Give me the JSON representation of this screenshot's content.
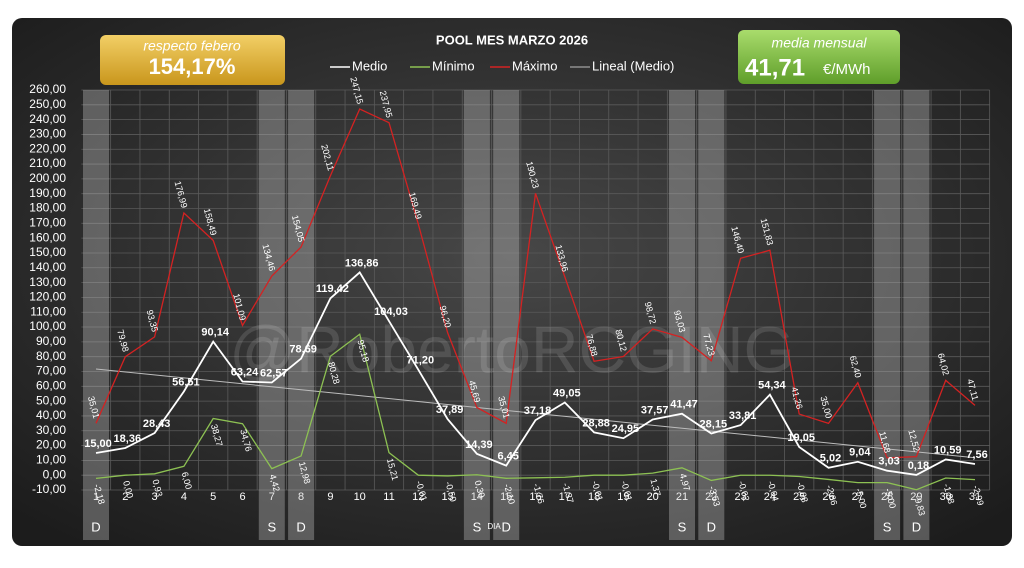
{
  "chart_data": {
    "type": "line",
    "title": "POOL  MES MARZO 2026",
    "x_label": "DIA",
    "watermark": "@RobertoRCGING",
    "kpi_left": {
      "label": "respecto febero",
      "value": "154,17%"
    },
    "kpi_right": {
      "label": "media mensual",
      "value": "41,71",
      "unit": "€/MWh"
    },
    "categories": [
      "1",
      "2",
      "3",
      "4",
      "5",
      "6",
      "7",
      "8",
      "9",
      "10",
      "11",
      "12",
      "13",
      "14",
      "15",
      "16",
      "17",
      "18",
      "19",
      "20",
      "21",
      "22",
      "23",
      "24",
      "25",
      "26",
      "27",
      "28",
      "29",
      "30",
      "31"
    ],
    "day_markers": [
      {
        "category": "1",
        "label": "D"
      },
      {
        "category": "7",
        "label": "S"
      },
      {
        "category": "8",
        "label": "D"
      },
      {
        "category": "14",
        "label": "S"
      },
      {
        "category": "15",
        "label": "D"
      },
      {
        "category": "21",
        "label": "S"
      },
      {
        "category": "22",
        "label": "D"
      },
      {
        "category": "28",
        "label": "S"
      },
      {
        "category": "29",
        "label": "D"
      }
    ],
    "series": [
      {
        "name": "Medio",
        "color": "#ffffff",
        "values": [
          15.0,
          18.36,
          28.43,
          56.51,
          90.14,
          63.24,
          62.57,
          78.69,
          119.42,
          136.86,
          104.03,
          71.2,
          37.89,
          14.39,
          6.45,
          37.18,
          49.05,
          28.88,
          24.95,
          37.57,
          41.47,
          28.15,
          33.81,
          54.34,
          19.05,
          5.02,
          9.04,
          3.03,
          0.18,
          10.59,
          7.56
        ],
        "value_labels": [
          "15,00",
          "18,36",
          "28,43",
          "56,51",
          "90,14",
          "63,24",
          "62,57",
          "78,69",
          "119,42",
          "136,86",
          "104,03",
          "71,20",
          "37,89",
          "14,39",
          "6,45",
          "37,18",
          "49,05",
          "28,88",
          "24,95",
          "37,57",
          "41,47",
          "28,15",
          "33,81",
          "54,34",
          "19,05",
          "5,02",
          "9,04",
          "3,03",
          "0,18",
          "10,59",
          "7,56"
        ]
      },
      {
        "name": "Mínimo",
        "color": "#8dc153",
        "values": [
          -2.18,
          0.0,
          0.93,
          6.0,
          38.27,
          34.76,
          4.42,
          12.98,
          80.28,
          95.18,
          15.21,
          -0.01,
          -0.5,
          0.3,
          -2.1,
          -1.76,
          -1.37,
          -0.01,
          -0.01,
          1.37,
          4.97,
          -3.53,
          -0.02,
          -0.04,
          -0.88,
          -2.86,
          -5.0,
          -5.0,
          -9.83,
          -1.88,
          -2.99
        ],
        "value_labels": [
          "-2,18",
          "0,00",
          "0,93",
          "6,00",
          "38,27",
          "34,76",
          "4,42",
          "12,98",
          "80,28",
          "95,18",
          "15,21",
          "-0,01",
          "-0,50",
          "0,30",
          "-2,10",
          "-1,76",
          "-1,37",
          "-0,01",
          "-0,01",
          "1,37",
          "4,97",
          "-3,53",
          "-0,02",
          "-0,04",
          "-0,88",
          "-2,86",
          "-5,00",
          "-5,00",
          "-9,83",
          "-1,88",
          "-2,99"
        ]
      },
      {
        "name": "Máximo",
        "color": "#d42222",
        "values": [
          35.01,
          79.98,
          93.35,
          176.99,
          158.49,
          101.09,
          134.46,
          154.05,
          202.11,
          247.15,
          237.95,
          169.49,
          96.2,
          45.69,
          35.01,
          190.23,
          133.96,
          76.88,
          80.12,
          98.72,
          93.03,
          77.23,
          146.4,
          151.83,
          41.26,
          35.0,
          62.4,
          11.68,
          12.52,
          64.02,
          47.11
        ],
        "value_labels": [
          "35,01",
          "79,98",
          "93,35",
          "176,99",
          "158,49",
          "101,09",
          "134,46",
          "154,05",
          "202,11",
          "247,15",
          "237,95",
          "169,49",
          "96,20",
          "45,69",
          "35,01",
          "190,23",
          "133,96",
          "76,88",
          "80,12",
          "98,72",
          "93,03",
          "77,23",
          "146,40",
          "151,83",
          "41,26",
          "35,00",
          "62,40",
          "11,68",
          "12,52",
          "64,02",
          "47,11"
        ]
      }
    ],
    "trend": {
      "name": "Lineal (Medio)",
      "color": "#bdbdbd"
    },
    "ylim": [
      -10,
      260
    ],
    "yticks": [
      {
        "value": -10,
        "label": "-10,00"
      },
      {
        "value": 0,
        "label": "0,00"
      },
      {
        "value": 10,
        "label": "10,00"
      },
      {
        "value": 20,
        "label": "20,00"
      },
      {
        "value": 30,
        "label": "30,00"
      },
      {
        "value": 40,
        "label": "40,00"
      },
      {
        "value": 50,
        "label": "50,00"
      },
      {
        "value": 60,
        "label": "60,00"
      },
      {
        "value": 70,
        "label": "70,00"
      },
      {
        "value": 80,
        "label": "80,00"
      },
      {
        "value": 90,
        "label": "90,00"
      },
      {
        "value": 100,
        "label": "100,00"
      },
      {
        "value": 110,
        "label": "110,00"
      },
      {
        "value": 120,
        "label": "120,00"
      },
      {
        "value": 130,
        "label": "130,00"
      },
      {
        "value": 140,
        "label": "140,00"
      },
      {
        "value": 150,
        "label": "150,00"
      },
      {
        "value": 160,
        "label": "160,00"
      },
      {
        "value": 170,
        "label": "170,00"
      },
      {
        "value": 180,
        "label": "180,00"
      },
      {
        "value": 190,
        "label": "190,00"
      },
      {
        "value": 200,
        "label": "200,00"
      },
      {
        "value": 210,
        "label": "210,00"
      },
      {
        "value": 220,
        "label": "220,00"
      },
      {
        "value": 230,
        "label": "230,00"
      },
      {
        "value": 240,
        "label": "240,00"
      },
      {
        "value": 250,
        "label": "250,00"
      },
      {
        "value": 260,
        "label": "260,00"
      }
    ],
    "grid": true
  }
}
